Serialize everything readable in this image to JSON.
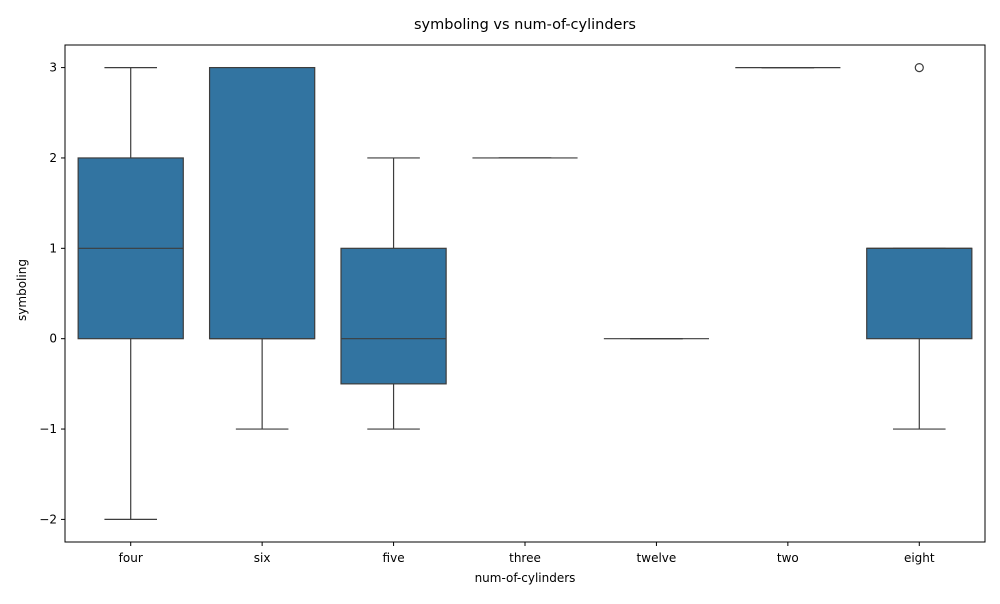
{
  "chart_data": {
    "type": "box",
    "title": "symboling vs num-of-cylinders",
    "xlabel": "num-of-cylinders",
    "ylabel": "symboling",
    "ylim": [
      -2.25,
      3.25
    ],
    "yticks": [
      3,
      2,
      1,
      0,
      -1,
      -2
    ],
    "ytick_labels": [
      "3",
      "2",
      "1",
      "0",
      "−1",
      "−2"
    ],
    "box_color": "#3274a1",
    "line_color": "#3d3d3d",
    "grid": false,
    "categories": [
      "four",
      "six",
      "five",
      "three",
      "twelve",
      "two",
      "eight"
    ],
    "boxes": [
      {
        "category": "four",
        "whisker_low": -2,
        "q1": 0,
        "median": 1,
        "q3": 2,
        "whisker_high": 3,
        "outliers": []
      },
      {
        "category": "six",
        "whisker_low": -1,
        "q1": 0,
        "median": 0,
        "q3": 3,
        "whisker_high": 3,
        "outliers": []
      },
      {
        "category": "five",
        "whisker_low": -1,
        "q1": -0.5,
        "median": 0,
        "q3": 1,
        "whisker_high": 2,
        "outliers": []
      },
      {
        "category": "three",
        "whisker_low": 2,
        "q1": 2,
        "median": 2,
        "q3": 2,
        "whisker_high": 2,
        "outliers": []
      },
      {
        "category": "twelve",
        "whisker_low": 0,
        "q1": 0,
        "median": 0,
        "q3": 0,
        "whisker_high": 0,
        "outliers": []
      },
      {
        "category": "two",
        "whisker_low": 3,
        "q1": 3,
        "median": 3,
        "q3": 3,
        "whisker_high": 3,
        "outliers": []
      },
      {
        "category": "eight",
        "whisker_low": -1,
        "q1": 0,
        "median": 1,
        "q3": 1,
        "whisker_high": 1,
        "outliers": [
          3
        ]
      }
    ]
  }
}
